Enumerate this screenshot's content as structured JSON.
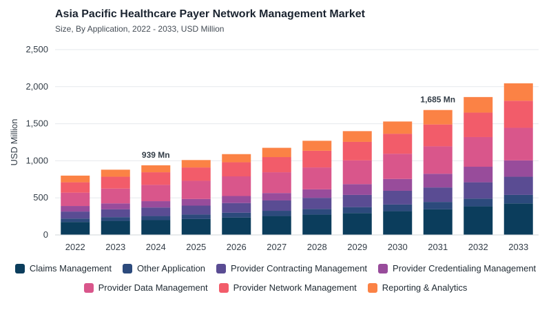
{
  "header": {
    "title": "Asia Pacific Healthcare Payer Network Management Market",
    "subtitle": "Size, By Application, 2022 - 2033, USD Million"
  },
  "chart_data": {
    "type": "bar",
    "stacked": true,
    "title": "Asia Pacific Healthcare Payer Network Management Market",
    "subtitle": "Size, By Application, 2022 - 2033, USD Million",
    "xlabel": "",
    "ylabel": "USD Million",
    "ylim": [
      0,
      2500
    ],
    "yticks": [
      0,
      500,
      1000,
      1500,
      2000,
      2500
    ],
    "ytick_labels": [
      "0",
      "500",
      "1,000",
      "1,500",
      "2,000",
      "2,500"
    ],
    "grid": true,
    "legend_position": "bottom",
    "categories": [
      "2022",
      "2023",
      "2024",
      "2025",
      "2026",
      "2027",
      "2028",
      "2029",
      "2030",
      "2031",
      "2032",
      "2033"
    ],
    "series": [
      {
        "name": "Claims Management",
        "color": "#0b3d5c",
        "values": [
          175,
          190,
          200,
          215,
          235,
          255,
          275,
          295,
          320,
          345,
          385,
          425
        ]
      },
      {
        "name": "Other Application",
        "color": "#2c4a7c",
        "values": [
          45,
          50,
          55,
          60,
          65,
          70,
          75,
          80,
          90,
          100,
          105,
          115
        ]
      },
      {
        "name": "Provider Contracting Management",
        "color": "#5a4c93",
        "values": [
          95,
          105,
          115,
          120,
          130,
          140,
          150,
          165,
          185,
          195,
          220,
          245
        ]
      },
      {
        "name": "Provider Credentialing Management",
        "color": "#984c9b",
        "values": [
          75,
          80,
          85,
          90,
          95,
          100,
          115,
          145,
          160,
          185,
          210,
          220
        ]
      },
      {
        "name": "Provider Data Management",
        "color": "#d9568b",
        "values": [
          180,
          200,
          220,
          245,
          265,
          280,
          295,
          320,
          340,
          370,
          400,
          440
        ]
      },
      {
        "name": "Provider Network Management",
        "color": "#f25c6a",
        "values": [
          140,
          160,
          170,
          180,
          190,
          205,
          225,
          250,
          270,
          295,
          330,
          365
        ]
      },
      {
        "name": "Reporting & Analytics",
        "color": "#fb8245",
        "values": [
          90,
          95,
          94,
          100,
          110,
          125,
          135,
          145,
          165,
          195,
          210,
          235
        ]
      }
    ],
    "annotations": [
      {
        "category": "2024",
        "text": "939 Mn"
      },
      {
        "category": "2031",
        "text": "1,685 Mn"
      }
    ]
  }
}
